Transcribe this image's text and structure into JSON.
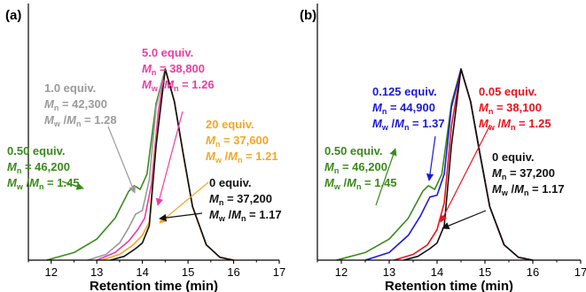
{
  "chart_data": [
    {
      "panel": "(a)",
      "type": "line",
      "xlabel": "Retention time (min)",
      "ylabel": "",
      "xlim": [
        11.5,
        17
      ],
      "xticks": [
        12,
        13,
        14,
        15,
        16,
        17
      ],
      "grid": false,
      "series": [
        {
          "color": "#3a8a1a",
          "equiv": "0.50 equiv.",
          "mn_value": "46,200",
          "pdi_value": "1.45",
          "x": [
            11.9,
            12.5,
            13.0,
            13.4,
            13.7,
            13.82,
            13.95,
            14.1,
            14.3,
            14.5,
            14.7,
            14.9,
            15.1,
            15.4,
            15.7,
            16.0
          ],
          "y": [
            0.0,
            0.04,
            0.11,
            0.22,
            0.36,
            0.39,
            0.37,
            0.45,
            0.82,
            1.0,
            0.83,
            0.55,
            0.28,
            0.08,
            0.015,
            0.0
          ]
        },
        {
          "color": "#9a9a9a",
          "equiv": "1.0 equiv.",
          "mn_value": "42,300",
          "pdi_value": "1.28",
          "x": [
            12.8,
            13.2,
            13.5,
            13.7,
            13.85,
            14.0,
            14.15,
            14.3,
            14.5,
            14.7,
            14.9,
            15.1,
            15.4,
            15.7,
            16.0
          ],
          "y": [
            0.0,
            0.03,
            0.09,
            0.17,
            0.24,
            0.26,
            0.42,
            0.8,
            1.0,
            0.83,
            0.55,
            0.28,
            0.08,
            0.015,
            0.0
          ]
        },
        {
          "color": "#ee3ba4",
          "equiv": "5.0 equiv.",
          "mn_value": "38,800",
          "pdi_value": "1.26",
          "x": [
            13.0,
            13.4,
            13.7,
            13.9,
            14.05,
            14.2,
            14.35,
            14.5,
            14.7,
            14.9,
            15.1,
            15.4,
            15.7,
            16.0
          ],
          "y": [
            0.0,
            0.04,
            0.1,
            0.16,
            0.22,
            0.4,
            0.78,
            1.0,
            0.83,
            0.55,
            0.28,
            0.08,
            0.015,
            0.0
          ]
        },
        {
          "color": "#f5a623",
          "equiv": "20 equiv.",
          "mn_value": "37,600",
          "pdi_value": "1.21",
          "x": [
            13.1,
            13.5,
            13.8,
            14.0,
            14.15,
            14.3,
            14.5,
            14.7,
            14.9,
            15.1,
            15.4,
            15.7,
            16.0
          ],
          "y": [
            0.0,
            0.03,
            0.08,
            0.13,
            0.2,
            0.62,
            1.0,
            0.83,
            0.55,
            0.28,
            0.08,
            0.015,
            0.0
          ]
        },
        {
          "color": "#111111",
          "equiv": "0 equiv.",
          "mn_value": "37,200",
          "pdi_value": "1.17",
          "x": [
            13.3,
            13.6,
            13.85,
            14.0,
            14.15,
            14.3,
            14.5,
            14.7,
            14.9,
            15.1,
            15.4,
            15.7,
            16.0
          ],
          "y": [
            0.0,
            0.02,
            0.06,
            0.09,
            0.18,
            0.6,
            1.0,
            0.83,
            0.55,
            0.28,
            0.08,
            0.015,
            0.0
          ]
        }
      ]
    },
    {
      "panel": "(b)",
      "type": "line",
      "xlabel": "Retention time (min)",
      "ylabel": "",
      "xlim": [
        11.5,
        17
      ],
      "xticks": [
        12,
        13,
        14,
        15,
        16,
        17
      ],
      "grid": false,
      "series": [
        {
          "color": "#3a8a1a",
          "equiv": "0.50 equiv.",
          "mn_value": "46,200",
          "pdi_value": "1.45",
          "x": [
            11.9,
            12.5,
            13.0,
            13.4,
            13.7,
            13.82,
            13.95,
            14.1,
            14.3,
            14.5,
            14.7,
            14.9,
            15.1,
            15.4,
            15.7,
            16.0
          ],
          "y": [
            0.0,
            0.04,
            0.11,
            0.22,
            0.36,
            0.39,
            0.37,
            0.45,
            0.82,
            1.0,
            0.83,
            0.55,
            0.28,
            0.08,
            0.015,
            0.0
          ]
        },
        {
          "color": "#1a1ad6",
          "equiv": "0.125 equiv.",
          "mn_value": "44,900",
          "pdi_value": "1.37",
          "x": [
            12.5,
            13.0,
            13.4,
            13.65,
            13.85,
            14.0,
            14.15,
            14.3,
            14.5,
            14.7,
            14.9,
            15.1,
            15.4,
            15.7,
            16.0
          ],
          "y": [
            0.0,
            0.04,
            0.13,
            0.23,
            0.33,
            0.34,
            0.45,
            0.8,
            1.0,
            0.83,
            0.55,
            0.28,
            0.08,
            0.015,
            0.0
          ]
        },
        {
          "color": "#e8141c",
          "equiv": "0.05 equiv.",
          "mn_value": "38,100",
          "pdi_value": "1.25",
          "x": [
            13.1,
            13.5,
            13.8,
            14.0,
            14.15,
            14.3,
            14.5,
            14.7,
            14.9,
            15.1,
            15.4,
            15.7,
            16.0
          ],
          "y": [
            0.0,
            0.03,
            0.08,
            0.16,
            0.3,
            0.7,
            1.0,
            0.83,
            0.55,
            0.28,
            0.08,
            0.015,
            0.0
          ]
        },
        {
          "color": "#111111",
          "equiv": "0 equiv.",
          "mn_value": "37,200",
          "pdi_value": "1.17",
          "x": [
            13.3,
            13.6,
            13.85,
            14.0,
            14.15,
            14.3,
            14.5,
            14.7,
            14.9,
            15.1,
            15.4,
            15.7,
            16.0
          ],
          "y": [
            0.0,
            0.02,
            0.06,
            0.09,
            0.18,
            0.6,
            1.0,
            0.83,
            0.55,
            0.28,
            0.08,
            0.015,
            0.0
          ]
        }
      ]
    }
  ],
  "text": {
    "mn_symbol": "M",
    "mn_sub": "n",
    "mw_symbol": "M",
    "mw_sub": "w",
    "eq_sign": " = ",
    "slash": " /"
  }
}
